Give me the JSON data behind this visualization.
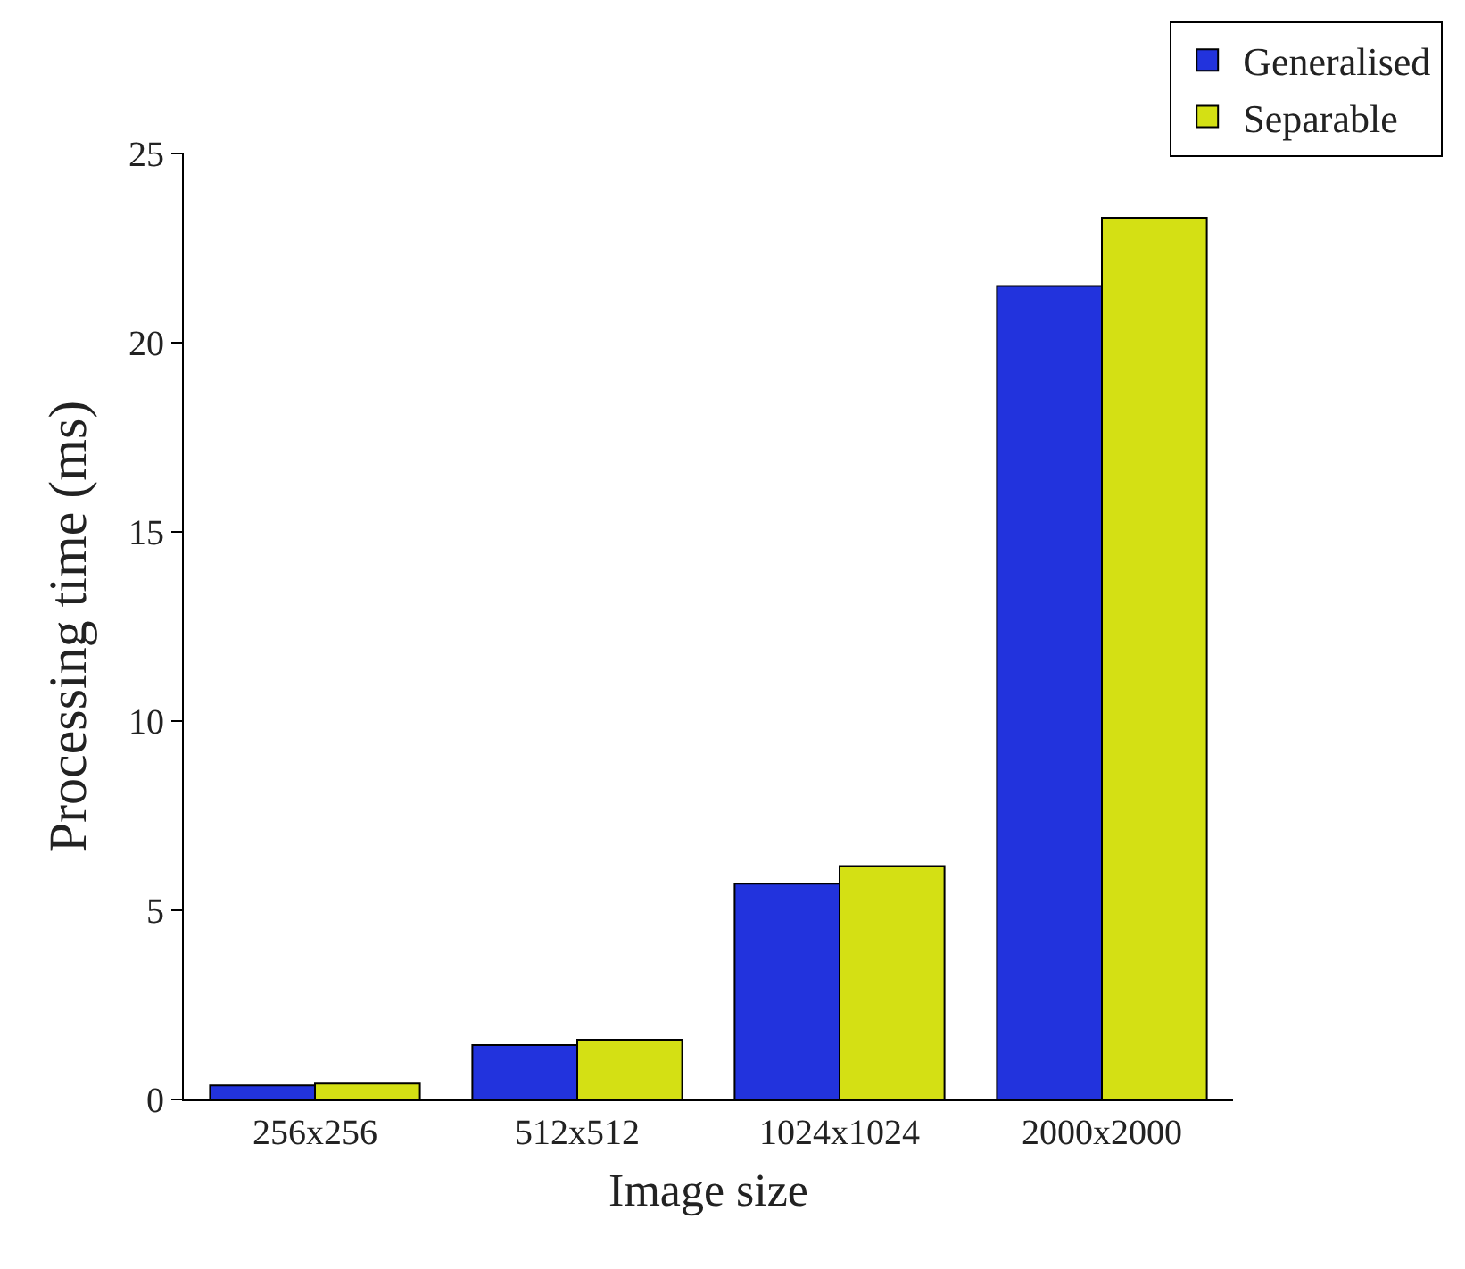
{
  "chart_data": {
    "type": "bar",
    "xlabel": "Image size",
    "ylabel": "Processing time (ms)",
    "categories": [
      "256x256",
      "512x512",
      "1024x1024",
      "2000x2000"
    ],
    "series": [
      {
        "name": "Generalised",
        "color": "#2233dd",
        "values": [
          0.37,
          1.44,
          5.7,
          21.5
        ]
      },
      {
        "name": "Separable",
        "color": "#d4e014",
        "values": [
          0.42,
          1.58,
          6.17,
          23.3
        ]
      }
    ],
    "ylim": [
      0,
      25
    ],
    "yticks": [
      0,
      5,
      10,
      15,
      20,
      25
    ],
    "grid": false,
    "legend": "top right"
  }
}
